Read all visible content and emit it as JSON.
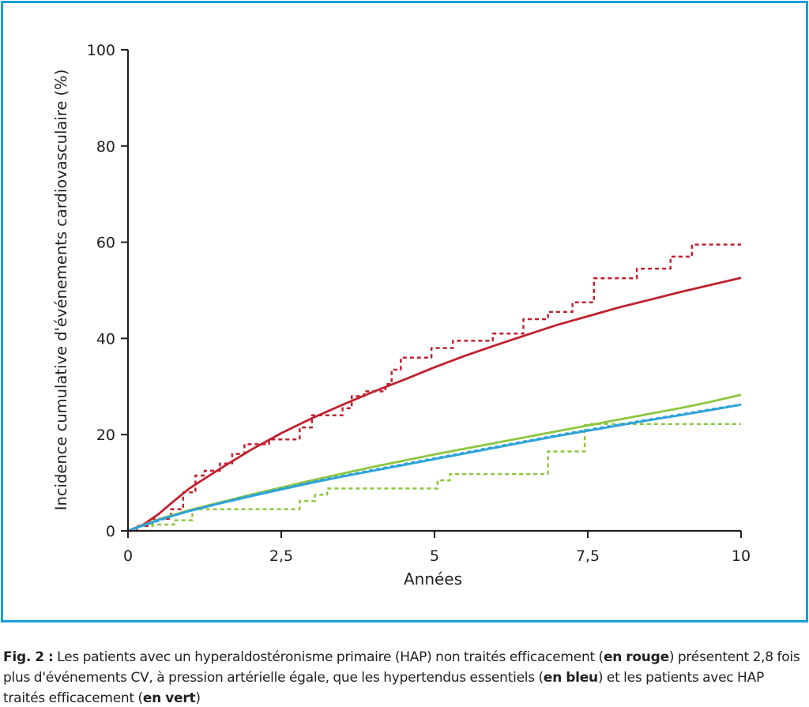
{
  "chart_data": {
    "type": "line",
    "xlabel": "Années",
    "ylabel": "Incidence cumulative d'événements cardiovasculaire (%)",
    "xlim": [
      0,
      10
    ],
    "ylim": [
      0,
      100
    ],
    "x_ticks": [
      0,
      2.5,
      5,
      7.5,
      10
    ],
    "x_tick_labels": [
      "0",
      "2,5",
      "5",
      "7,5",
      "10"
    ],
    "y_ticks": [
      0,
      20,
      40,
      60,
      80,
      100
    ],
    "y_tick_labels": [
      "0",
      "20",
      "40",
      "60",
      "80",
      "100"
    ],
    "grid": false,
    "colors": {
      "red": "#c0212e",
      "blue": "#2fa3d9",
      "green": "#8dc63f",
      "axis": "#231f20",
      "frame": "#18a0db"
    },
    "series": [
      {
        "color": "red",
        "style": "solid",
        "x": [
          0,
          0.25,
          0.5,
          0.75,
          1,
          1.5,
          2,
          2.5,
          3,
          3.5,
          4,
          4.5,
          5,
          5.5,
          6,
          6.5,
          7,
          7.5,
          8,
          8.5,
          9,
          9.5,
          10
        ],
        "y": [
          0,
          1.3,
          3.5,
          6.2,
          8.8,
          12.9,
          16.8,
          20.3,
          23.4,
          26.2,
          28.9,
          31.4,
          34.0,
          36.4,
          38.6,
          40.7,
          42.8,
          44.6,
          46.4,
          48.0,
          49.6,
          51.1,
          52.6
        ]
      },
      {
        "color": "red",
        "style": "dashed",
        "x": [
          0,
          0.15,
          0.15,
          0.4,
          0.4,
          0.7,
          0.7,
          0.9,
          0.9,
          1.1,
          1.1,
          1.25,
          1.25,
          1.5,
          1.5,
          1.7,
          1.7,
          1.9,
          1.9,
          2.3,
          2.3,
          2.8,
          2.8,
          3.0,
          3.0,
          3.5,
          3.5,
          3.65,
          3.65,
          3.85,
          3.85,
          4.2,
          4.2,
          4.3,
          4.3,
          4.45,
          4.45,
          4.95,
          4.95,
          5.3,
          5.3,
          5.95,
          5.95,
          6.45,
          6.45,
          6.85,
          6.85,
          7.25,
          7.25,
          7.6,
          7.6,
          8.3,
          8.3,
          8.85,
          8.85,
          9.2,
          9.2,
          10
        ],
        "y": [
          0,
          0,
          1,
          1,
          2.5,
          2.5,
          4.5,
          4.5,
          8,
          8,
          11.5,
          11.5,
          12.5,
          12.5,
          14,
          14,
          16,
          16,
          18,
          18,
          19,
          19,
          21.5,
          21.5,
          24,
          24,
          25.5,
          25.5,
          28,
          28,
          29,
          29,
          30.5,
          30.5,
          33.5,
          33.5,
          36,
          36,
          38,
          38,
          39.5,
          39.5,
          41,
          41,
          44,
          44,
          45.5,
          45.5,
          47.5,
          47.5,
          52.5,
          52.5,
          54.5,
          54.5,
          57,
          57,
          59.5,
          59.5
        ]
      },
      {
        "color": "green",
        "style": "solid",
        "x": [
          0,
          0.5,
          1,
          1.5,
          2,
          2.5,
          3,
          3.5,
          4,
          4.5,
          5,
          5.5,
          6,
          6.5,
          7,
          7.5,
          8,
          8.5,
          9,
          9.5,
          10
        ],
        "y": [
          0,
          2.4,
          4.3,
          5.9,
          7.5,
          9.0,
          10.5,
          11.9,
          13.3,
          14.6,
          15.9,
          17.1,
          18.3,
          19.5,
          20.7,
          21.9,
          23.1,
          24.3,
          25.5,
          26.8,
          28.3
        ]
      },
      {
        "color": "green",
        "style": "dashed",
        "x": [
          0,
          0.4,
          0.4,
          0.75,
          0.75,
          1.05,
          1.05,
          2.65,
          2.65,
          2.8,
          2.8,
          3.05,
          3.05,
          3.25,
          3.25,
          5.05,
          5.05,
          5.25,
          5.25,
          6.85,
          6.85,
          7.45,
          7.45,
          7.55,
          7.55,
          10
        ],
        "y": [
          0,
          0,
          1.3,
          1.3,
          2.2,
          2.2,
          4.5,
          4.5,
          4.5,
          4.5,
          6.2,
          6.2,
          7.5,
          7.5,
          8.8,
          8.8,
          10.5,
          10.5,
          11.8,
          11.8,
          16.5,
          16.5,
          22,
          22,
          22.2,
          22.2
        ]
      },
      {
        "color": "blue",
        "style": "solid",
        "x": [
          0,
          0.5,
          1,
          1.5,
          2,
          2.5,
          3,
          3.5,
          4,
          4.5,
          5,
          5.5,
          6,
          6.5,
          7,
          7.5,
          8,
          8.5,
          9,
          9.5,
          10
        ],
        "y": [
          0,
          2.3,
          4.1,
          5.7,
          7.2,
          8.6,
          10.0,
          11.3,
          12.5,
          13.7,
          14.9,
          16.1,
          17.3,
          18.5,
          19.7,
          20.8,
          21.9,
          23.0,
          24.0,
          25.1,
          26.2
        ]
      },
      {
        "color": "blue",
        "style": "dashed",
        "x": [
          0,
          1,
          2,
          3,
          4,
          5,
          6,
          7,
          8,
          9,
          10
        ],
        "y": [
          0,
          4.2,
          7.4,
          10.2,
          12.7,
          15.1,
          17.5,
          19.9,
          22.1,
          24.2,
          26.3
        ]
      }
    ]
  },
  "caption": {
    "fig_label": "Fig. 2 :",
    "text_1": " Les patients avec un hyperaldostéronisme primaire (HAP) non traités efficacement (",
    "bold_red": "en rouge",
    "text_2": ") présentent 2,8 fois plus d'événements CV, à pression artérielle égale, que les hypertendus essentiels (",
    "bold_blue": "en bleu",
    "text_3": ") et les patients avec HAP traités efficacement (",
    "bold_green": "en vert",
    "text_4": ")"
  }
}
